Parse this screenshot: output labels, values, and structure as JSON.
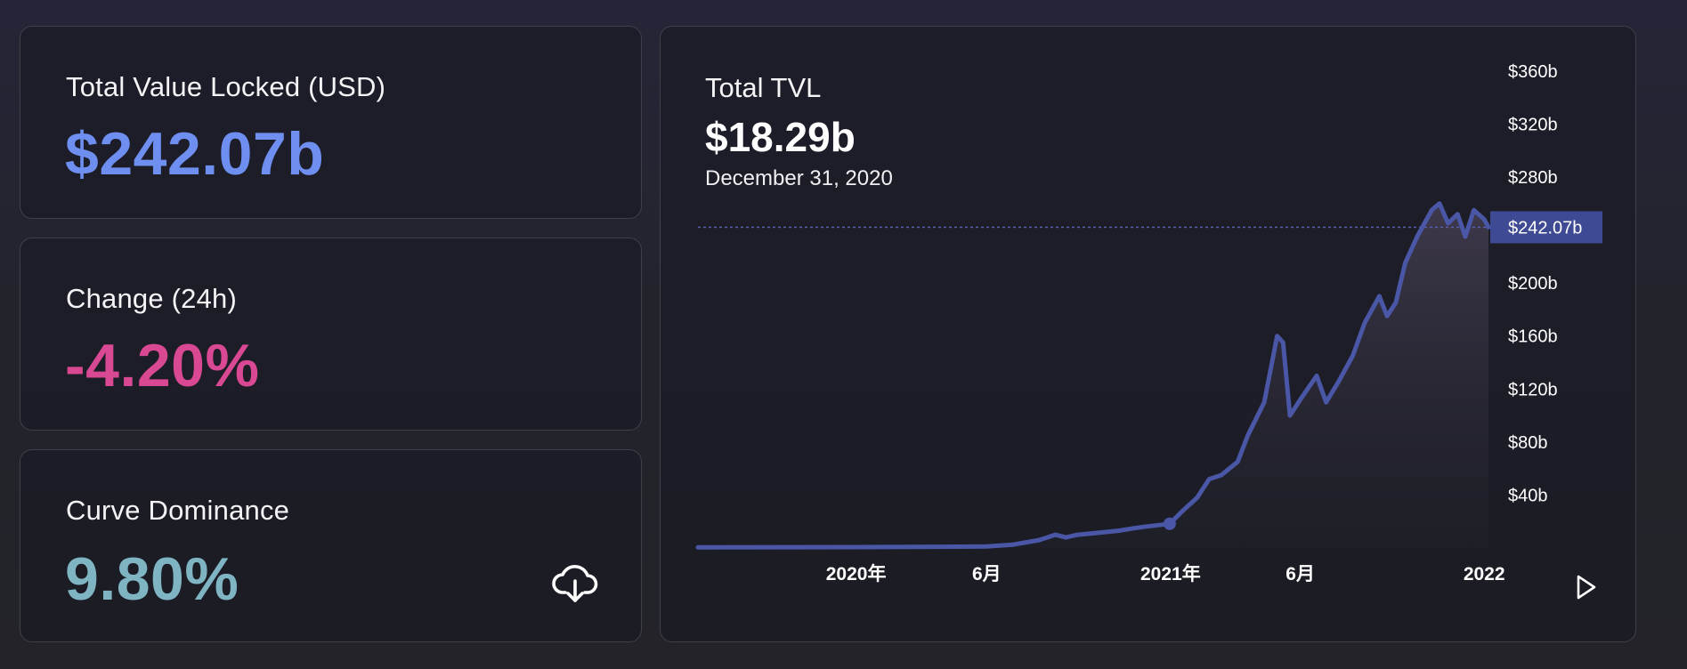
{
  "stats": {
    "tvl": {
      "label": "Total Value Locked (USD)",
      "value": "$242.07b",
      "color": "#6f8ff0"
    },
    "change": {
      "label": "Change (24h)",
      "value": "-4.20%",
      "color": "#d84893"
    },
    "dominance": {
      "label": "Curve Dominance",
      "value": "9.80%",
      "color": "#7fb4c3"
    }
  },
  "icons": {
    "download": "cloud-download-icon",
    "play": "play-icon"
  },
  "chart": {
    "title": "Total TVL",
    "value": "$18.29b",
    "date": "December 31, 2020",
    "current_label": "$242.07b"
  },
  "chart_data": {
    "type": "area",
    "title": "Total TVL",
    "xlabel": "",
    "ylabel": "",
    "y_unit": "USD billions",
    "ylim": [
      0,
      380
    ],
    "y_ticks": [
      40,
      80,
      120,
      160,
      200,
      240,
      280,
      320,
      360
    ],
    "y_tick_labels": [
      "$40b",
      "$80b",
      "$120b",
      "$160b",
      "$200b",
      "",
      "$280b",
      "$320b",
      "$360b"
    ],
    "x_ticks": [
      {
        "date": "2020-01-01",
        "label": "2020年"
      },
      {
        "date": "2020-06-01",
        "label": "6月"
      },
      {
        "date": "2021-01-01",
        "label": "2021年"
      },
      {
        "date": "2021-06-01",
        "label": "6月"
      },
      {
        "date": "2022-01-01",
        "label": "2022"
      }
    ],
    "xlim": [
      "2019-07-01",
      "2022-01-06"
    ],
    "current_value": 242.07,
    "current_value_label": "$242.07b",
    "highlight_point": {
      "date": "2020-12-31",
      "value": 18.29
    },
    "line_color": "#4a56a6",
    "series": [
      {
        "values": [
          [
            "2019-07-01",
            0.5
          ],
          [
            "2019-10-01",
            0.6
          ],
          [
            "2020-01-01",
            0.7
          ],
          [
            "2020-03-01",
            0.9
          ],
          [
            "2020-05-01",
            1.0
          ],
          [
            "2020-06-01",
            1.2
          ],
          [
            "2020-07-01",
            2.5
          ],
          [
            "2020-08-01",
            6.0
          ],
          [
            "2020-08-20",
            10.0
          ],
          [
            "2020-09-01",
            8.0
          ],
          [
            "2020-09-15",
            10.0
          ],
          [
            "2020-10-01",
            11.0
          ],
          [
            "2020-11-01",
            13.0
          ],
          [
            "2020-11-20",
            15.0
          ],
          [
            "2020-12-01",
            16.0
          ],
          [
            "2020-12-31",
            18.29
          ],
          [
            "2021-01-15",
            28.0
          ],
          [
            "2021-02-01",
            38.0
          ],
          [
            "2021-02-15",
            52.0
          ],
          [
            "2021-03-01",
            55.0
          ],
          [
            "2021-03-20",
            65.0
          ],
          [
            "2021-04-01",
            85.0
          ],
          [
            "2021-04-20",
            110.0
          ],
          [
            "2021-05-05",
            160.0
          ],
          [
            "2021-05-12",
            155.0
          ],
          [
            "2021-05-20",
            100.0
          ],
          [
            "2021-06-01",
            112.0
          ],
          [
            "2021-06-20",
            130.0
          ],
          [
            "2021-07-01",
            110.0
          ],
          [
            "2021-07-15",
            125.0
          ],
          [
            "2021-08-01",
            145.0
          ],
          [
            "2021-08-15",
            170.0
          ],
          [
            "2021-09-01",
            190.0
          ],
          [
            "2021-09-10",
            175.0
          ],
          [
            "2021-09-20",
            185.0
          ],
          [
            "2021-10-01",
            215.0
          ],
          [
            "2021-10-15",
            235.0
          ],
          [
            "2021-11-01",
            255.0
          ],
          [
            "2021-11-10",
            260.0
          ],
          [
            "2021-11-20",
            245.0
          ],
          [
            "2021-12-01",
            252.0
          ],
          [
            "2021-12-10",
            235.0
          ],
          [
            "2021-12-20",
            255.0
          ],
          [
            "2022-01-01",
            248.0
          ],
          [
            "2022-01-06",
            242.07
          ]
        ]
      }
    ],
    "grid": false,
    "legend": "none"
  }
}
